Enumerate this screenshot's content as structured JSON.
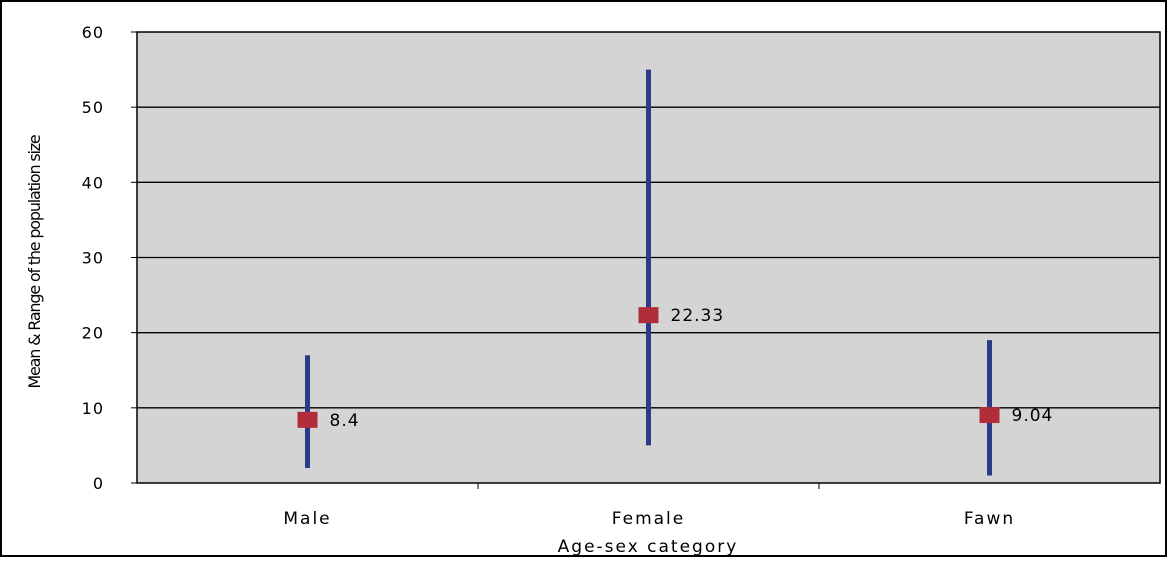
{
  "chart_data": {
    "type": "scatter",
    "title": "",
    "xlabel": "Age-sex category",
    "ylabel": "Mean & Range of the population size",
    "categories": [
      "Male",
      "Female",
      "Fawn"
    ],
    "series": [
      {
        "name": "",
        "mean": [
          8.4,
          22.33,
          9.04
        ],
        "low": [
          2,
          5,
          1
        ],
        "high": [
          17,
          55,
          19
        ]
      }
    ],
    "data_labels": [
      "8.4",
      "22.33",
      "9.04"
    ],
    "ylim": [
      0,
      60
    ],
    "yticks": [
      "0",
      "10",
      "20",
      "30",
      "40",
      "50",
      "60"
    ],
    "grid": true,
    "legend": "none",
    "colors": {
      "plot_background": "#d4d4d4",
      "range_line": "#2e3a87",
      "mean_marker": "#b22d3a",
      "grid": "#000000"
    }
  }
}
